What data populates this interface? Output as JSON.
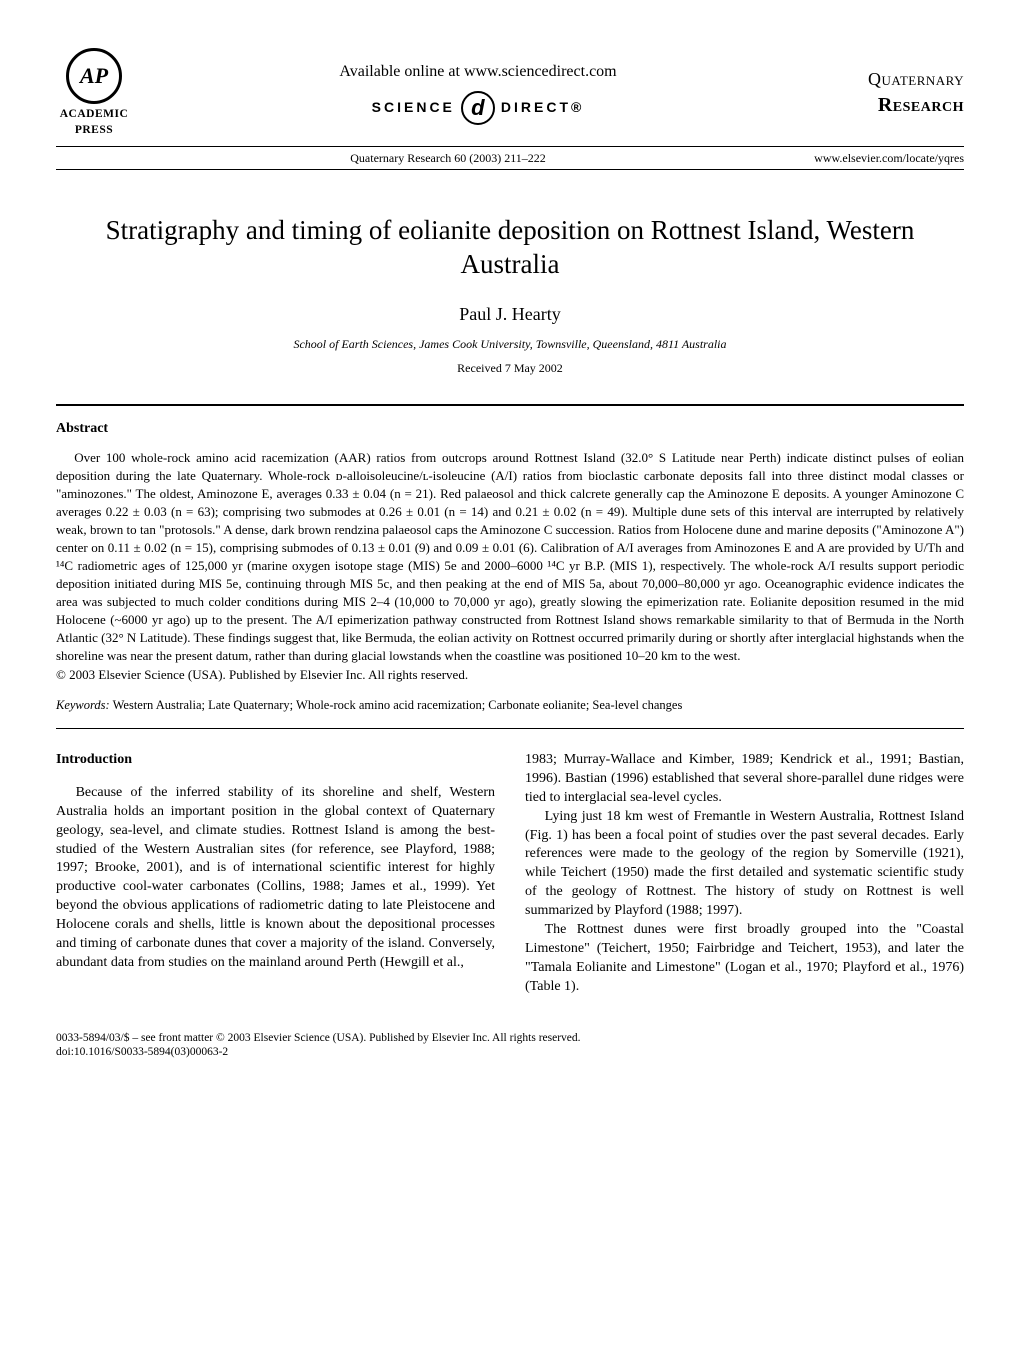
{
  "header": {
    "publisher_logo_letters": "AP",
    "publisher_line1": "ACADEMIC",
    "publisher_line2": "PRESS",
    "available_text": "Available online at www.sciencedirect.com",
    "sd_left": "SCIENCE",
    "sd_glyph": "d",
    "sd_right": "DIRECT®",
    "brand_line1": "Quaternary",
    "brand_line2": "Research",
    "reference": "Quaternary Research 60 (2003) 211–222",
    "url": "www.elsevier.com/locate/yqres"
  },
  "title": "Stratigraphy and timing of eolianite deposition on Rottnest Island, Western Australia",
  "author": "Paul J. Hearty",
  "affiliation": "School of Earth Sciences, James Cook University, Townsville, Queensland, 4811 Australia",
  "received": "Received 7 May 2002",
  "abstract_heading": "Abstract",
  "abstract_text": "Over 100 whole-rock amino acid racemization (AAR) ratios from outcrops around Rottnest Island (32.0° S Latitude near Perth) indicate distinct pulses of eolian deposition during the late Quaternary. Whole-rock ᴅ-alloisoleucine/ʟ-isoleucine (A/I) ratios from bioclastic carbonate deposits fall into three distinct modal classes or \"aminozones.\" The oldest, Aminozone E, averages 0.33 ± 0.04 (n = 21). Red palaeosol and thick calcrete generally cap the Aminozone E deposits. A younger Aminozone C averages 0.22 ± 0.03 (n = 63); comprising two submodes at 0.26 ± 0.01 (n = 14) and 0.21 ± 0.02 (n = 49). Multiple dune sets of this interval are interrupted by relatively weak, brown to tan \"protosols.\" A dense, dark brown rendzina palaeosol caps the Aminozone C succession. Ratios from Holocene dune and marine deposits (\"Aminozone A\") center on 0.11 ± 0.02 (n = 15), comprising submodes of 0.13 ± 0.01 (9) and 0.09 ± 0.01 (6). Calibration of A/I averages from Aminozones E and A are provided by U/Th and ¹⁴C radiometric ages of 125,000 yr (marine oxygen isotope stage (MIS) 5e and 2000–6000 ¹⁴C yr B.P. (MIS 1), respectively. The whole-rock A/I results support periodic deposition initiated during MIS 5e, continuing through MIS 5c, and then peaking at the end of MIS 5a, about 70,000–80,000 yr ago. Oceanographic evidence indicates the area was subjected to much colder conditions during MIS 2–4 (10,000 to 70,000 yr ago), greatly slowing the epimerization rate. Eolianite deposition resumed in the mid Holocene (~6000 yr ago) up to the present. The A/I epimerization pathway constructed from Rottnest Island shows remarkable similarity to that of Bermuda in the North Atlantic (32° N Latitude). These findings suggest that, like Bermuda, the eolian activity on Rottnest occurred primarily during or shortly after interglacial highstands when the shoreline was near the present datum, rather than during glacial lowstands when the coastline was positioned 10–20 km to the west.",
  "copyright": "© 2003 Elsevier Science (USA). Published by Elsevier Inc. All rights reserved.",
  "keywords_label": "Keywords:",
  "keywords_text": "Western Australia; Late Quaternary; Whole-rock amino acid racemization; Carbonate eolianite; Sea-level changes",
  "intro_heading": "Introduction",
  "col_left_p1": "Because of the inferred stability of its shoreline and shelf, Western Australia holds an important position in the global context of Quaternary geology, sea-level, and climate studies. Rottnest Island is among the best-studied of the Western Australian sites (for reference, see Playford, 1988; 1997; Brooke, 2001), and is of international scientific interest for highly productive cool-water carbonates (Collins, 1988; James et al., 1999). Yet beyond the obvious applications of radiometric dating to late Pleistocene and Holocene corals and shells, little is known about the depositional processes and timing of carbonate dunes that cover a majority of the island. Conversely, abundant data from studies on the mainland around Perth (Hewgill et al.,",
  "col_right_p1": "1983; Murray-Wallace and Kimber, 1989; Kendrick et al., 1991; Bastian, 1996). Bastian (1996) established that several shore-parallel dune ridges were tied to interglacial sea-level cycles.",
  "col_right_p2": "Lying just 18 km west of Fremantle in Western Australia, Rottnest Island (Fig. 1) has been a focal point of studies over the past several decades. Early references were made to the geology of the region by Somerville (1921), while Teichert (1950) made the first detailed and systematic scientific study of the geology of Rottnest. The history of study on Rottnest is well summarized by Playford (1988; 1997).",
  "col_right_p3": "The Rottnest dunes were first broadly grouped into the \"Coastal Limestone\" (Teichert, 1950; Fairbridge and Teichert, 1953), and later the \"Tamala Eolianite and Limestone\" (Logan et al., 1970; Playford et al., 1976) (Table 1).",
  "footer_line1": "0033-5894/03/$ – see front matter © 2003 Elsevier Science (USA). Published by Elsevier Inc. All rights reserved.",
  "footer_line2": "doi:10.1016/S0033-5894(03)00063-2"
}
